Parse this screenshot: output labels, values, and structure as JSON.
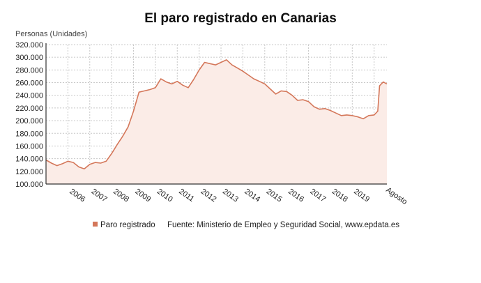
{
  "chart_data": {
    "type": "area",
    "title": "El paro registrado en Canarias",
    "ylabel": "Personas (Unidades)",
    "ylim": [
      100000,
      320000
    ],
    "yticks": [
      "100.000",
      "120.000",
      "140.000",
      "160.000",
      "180.000",
      "200.000",
      "220.000",
      "240.000",
      "260.000",
      "280.000",
      "300.000",
      "320.000"
    ],
    "xticks": [
      "2006",
      "2007",
      "2008",
      "2009",
      "2010",
      "2011",
      "2012",
      "2013",
      "2014",
      "2015",
      "2016",
      "2017",
      "2018",
      "2019",
      "Agosto"
    ],
    "grid": true,
    "legend": "bottom",
    "source": "Fuente: Ministerio de Empleo y Seguridad Social, www.epdata.es",
    "series": [
      {
        "name": "Paro registrado",
        "color": "#d4775a",
        "fill": "#fbece7",
        "points": [
          [
            "2005-01",
            138000
          ],
          [
            "2005-04",
            133000
          ],
          [
            "2005-07",
            129000
          ],
          [
            "2005-10",
            132000
          ],
          [
            "2006-01",
            136000
          ],
          [
            "2006-04",
            134000
          ],
          [
            "2006-07",
            127000
          ],
          [
            "2006-10",
            124000
          ],
          [
            "2007-01",
            131000
          ],
          [
            "2007-04",
            134000
          ],
          [
            "2007-07",
            133000
          ],
          [
            "2007-10",
            136000
          ],
          [
            "2008-01",
            148000
          ],
          [
            "2008-04",
            162000
          ],
          [
            "2008-07",
            175000
          ],
          [
            "2008-10",
            190000
          ],
          [
            "2009-01",
            215000
          ],
          [
            "2009-04",
            245000
          ],
          [
            "2009-07",
            247000
          ],
          [
            "2009-10",
            249000
          ],
          [
            "2010-01",
            252000
          ],
          [
            "2010-04",
            266000
          ],
          [
            "2010-07",
            261000
          ],
          [
            "2010-10",
            258000
          ],
          [
            "2011-01",
            262000
          ],
          [
            "2011-04",
            256000
          ],
          [
            "2011-07",
            252000
          ],
          [
            "2011-10",
            265000
          ],
          [
            "2012-01",
            280000
          ],
          [
            "2012-04",
            292000
          ],
          [
            "2012-07",
            290000
          ],
          [
            "2012-10",
            288000
          ],
          [
            "2013-01",
            292000
          ],
          [
            "2013-04",
            296000
          ],
          [
            "2013-07",
            288000
          ],
          [
            "2013-10",
            283000
          ],
          [
            "2014-01",
            278000
          ],
          [
            "2014-04",
            272000
          ],
          [
            "2014-07",
            266000
          ],
          [
            "2014-10",
            262000
          ],
          [
            "2015-01",
            258000
          ],
          [
            "2015-04",
            250000
          ],
          [
            "2015-07",
            242000
          ],
          [
            "2015-10",
            247000
          ],
          [
            "2016-01",
            246000
          ],
          [
            "2016-04",
            240000
          ],
          [
            "2016-07",
            232000
          ],
          [
            "2016-10",
            233000
          ],
          [
            "2017-01",
            230000
          ],
          [
            "2017-04",
            222000
          ],
          [
            "2017-07",
            218000
          ],
          [
            "2017-10",
            219000
          ],
          [
            "2018-01",
            216000
          ],
          [
            "2018-04",
            212000
          ],
          [
            "2018-07",
            208000
          ],
          [
            "2018-10",
            209000
          ],
          [
            "2019-01",
            208000
          ],
          [
            "2019-04",
            206000
          ],
          [
            "2019-07",
            203000
          ],
          [
            "2019-10",
            208000
          ],
          [
            "2020-01",
            209000
          ],
          [
            "2020-03",
            215000
          ],
          [
            "2020-04",
            255000
          ],
          [
            "2020-06",
            261000
          ],
          [
            "2020-08",
            258000
          ]
        ]
      }
    ]
  }
}
